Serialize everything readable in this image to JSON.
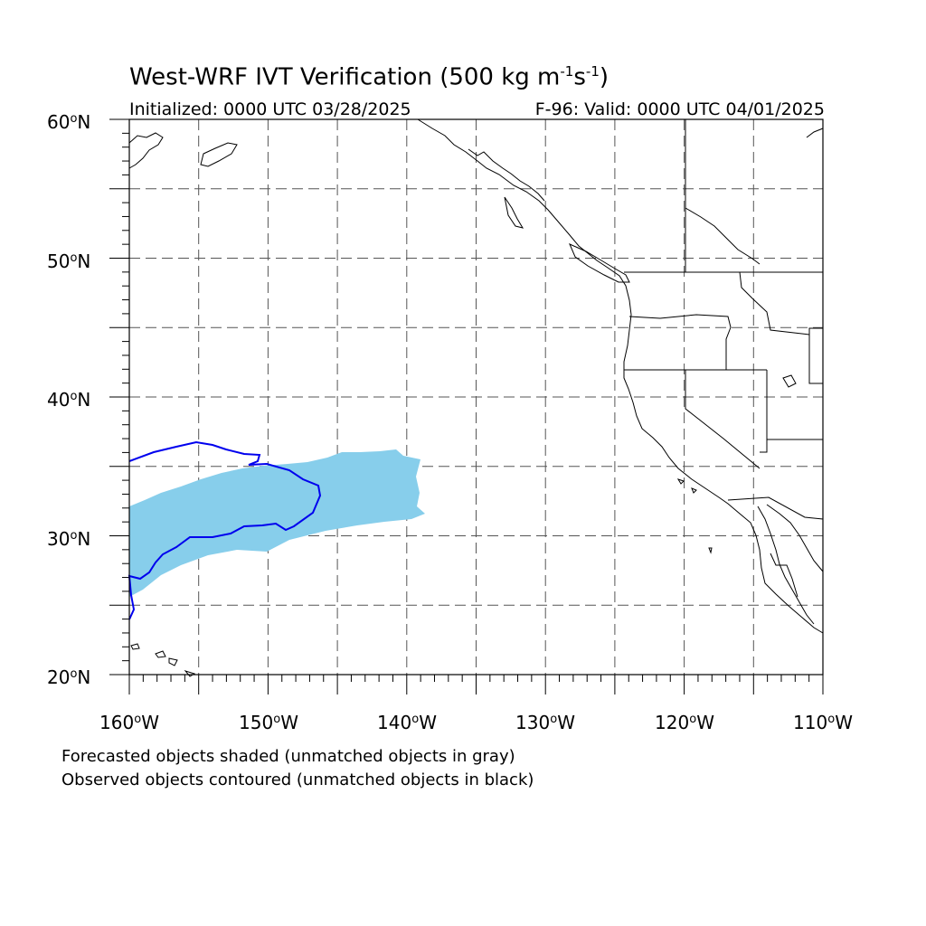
{
  "title": {
    "main": "West-WRF IVT Verification (500 kg m",
    "exp1": "-1",
    "mid": "s",
    "exp2": "-1",
    "close": ")"
  },
  "subtitle": {
    "initialized": "Initialized: 0000 UTC 03/28/2025",
    "valid": "F-96: Valid: 0000 UTC 04/01/2025"
  },
  "map": {
    "lon_range": [
      -160,
      -110
    ],
    "lat_range": [
      20,
      60
    ],
    "grid_style": "dashed",
    "lat_labels": [
      {
        "num": "60",
        "hemi": "N"
      },
      {
        "num": "50",
        "hemi": "N"
      },
      {
        "num": "40",
        "hemi": "N"
      },
      {
        "num": "30",
        "hemi": "N"
      },
      {
        "num": "20",
        "hemi": "N"
      }
    ],
    "lon_labels": [
      {
        "num": "160",
        "hemi": "W"
      },
      {
        "num": "150",
        "hemi": "W"
      },
      {
        "num": "140",
        "hemi": "W"
      },
      {
        "num": "130",
        "hemi": "W"
      },
      {
        "num": "120",
        "hemi": "W"
      },
      {
        "num": "110",
        "hemi": "W"
      }
    ],
    "colors": {
      "forecast_fill": "#87ceeb",
      "observed_contour": "#0000ee",
      "coastline": "#000000"
    }
  },
  "legend": {
    "line1": "Forecasted objects shaded (unmatched objects in gray)",
    "line2": "Observed objects contoured (unmatched objects in black)"
  }
}
